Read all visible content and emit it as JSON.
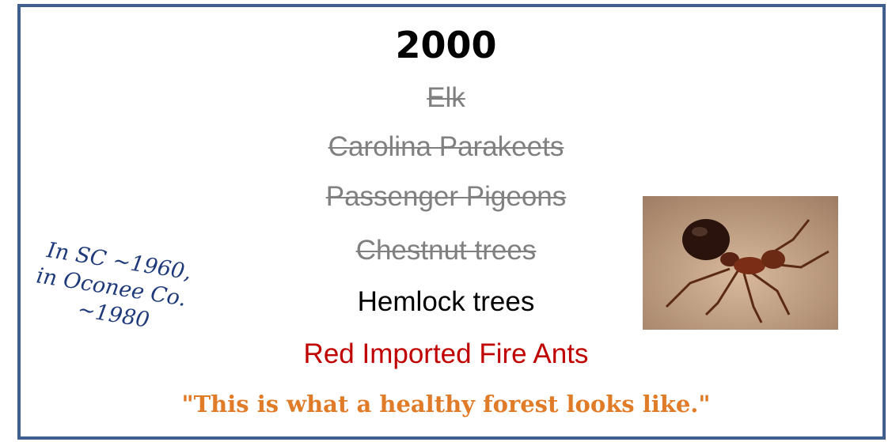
{
  "title": "2000",
  "items": [
    {
      "text": "Elk",
      "struck": true,
      "color": "#808080"
    },
    {
      "text": "Carolina Parakeets",
      "struck": true,
      "color": "#808080"
    },
    {
      "text": "Passenger Pigeons",
      "struck": true,
      "color": "#808080"
    },
    {
      "text": "Chestnut trees",
      "struck": true,
      "color": "#808080"
    },
    {
      "text": "Hemlock trees",
      "struck": false,
      "color": "#000000"
    },
    {
      "text": "Red Imported Fire Ants",
      "struck": false,
      "color": "#c00000"
    }
  ],
  "note": {
    "lines": [
      "In SC ~1960,",
      "in Oconee Co.",
      "~1980"
    ]
  },
  "quote": "\"This is what a healthy forest looks like.\""
}
